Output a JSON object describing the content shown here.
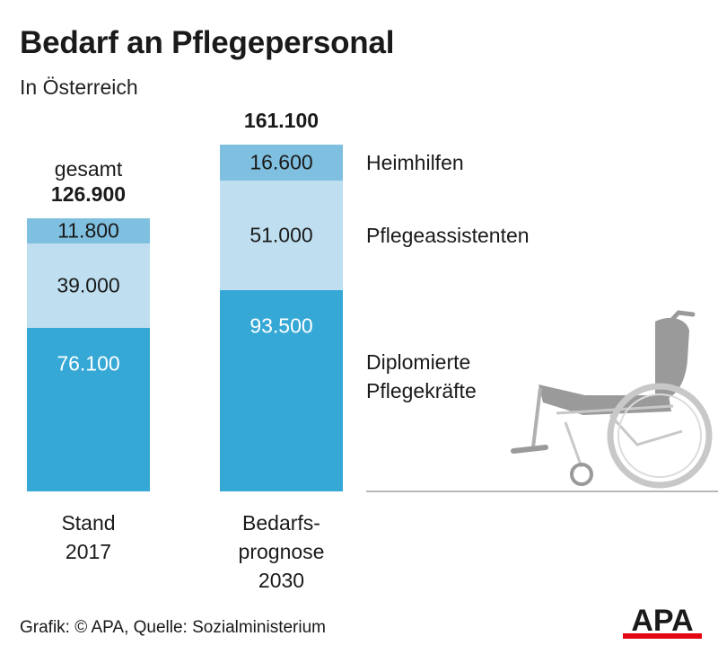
{
  "title": "Bedarf an Pflegepersonal",
  "subtitle": "In Österreich",
  "source": "Grafik: © APA, Quelle: Sozialministerium",
  "logo_text": "APA",
  "colors": {
    "heimhilfen": "#7fbfdf",
    "pflegeassistenten": "#bfdff0",
    "diplomierte": "#35a8d6",
    "logo_red": "#e30613",
    "text": "#1a1a1a",
    "baseline": "#b8b8b8"
  },
  "chart_data": {
    "type": "bar",
    "stacked": true,
    "categories": [
      "Stand 2017",
      "Bedarfsprognose 2030"
    ],
    "category_labels": [
      [
        "Stand",
        "2017"
      ],
      [
        "Bedarfs-",
        "prognose",
        "2030"
      ]
    ],
    "series": [
      {
        "name": "Diplomierte Pflegekräfte",
        "name_lines": [
          "Diplomierte",
          "Pflegekräfte"
        ],
        "values": [
          76100,
          93500
        ],
        "labels": [
          "76.100",
          "93.500"
        ],
        "color_key": "diplomierte"
      },
      {
        "name": "Pflegeassistenten",
        "name_lines": [
          "Pflegeassistenten"
        ],
        "values": [
          39000,
          51000
        ],
        "labels": [
          "39.000",
          "51.000"
        ],
        "color_key": "pflegeassistenten"
      },
      {
        "name": "Heimhilfen",
        "name_lines": [
          "Heimhilfen"
        ],
        "values": [
          11800,
          16600
        ],
        "labels": [
          "11.800",
          "16.600"
        ],
        "color_key": "heimhilfen"
      }
    ],
    "totals": [
      126900,
      161100
    ],
    "total_labels": [
      [
        "gesamt",
        "126.900"
      ],
      [
        "161.100"
      ]
    ],
    "xlabel": "",
    "ylabel": "",
    "ylim": [
      0,
      161100
    ],
    "grid": false,
    "legend": "right"
  }
}
